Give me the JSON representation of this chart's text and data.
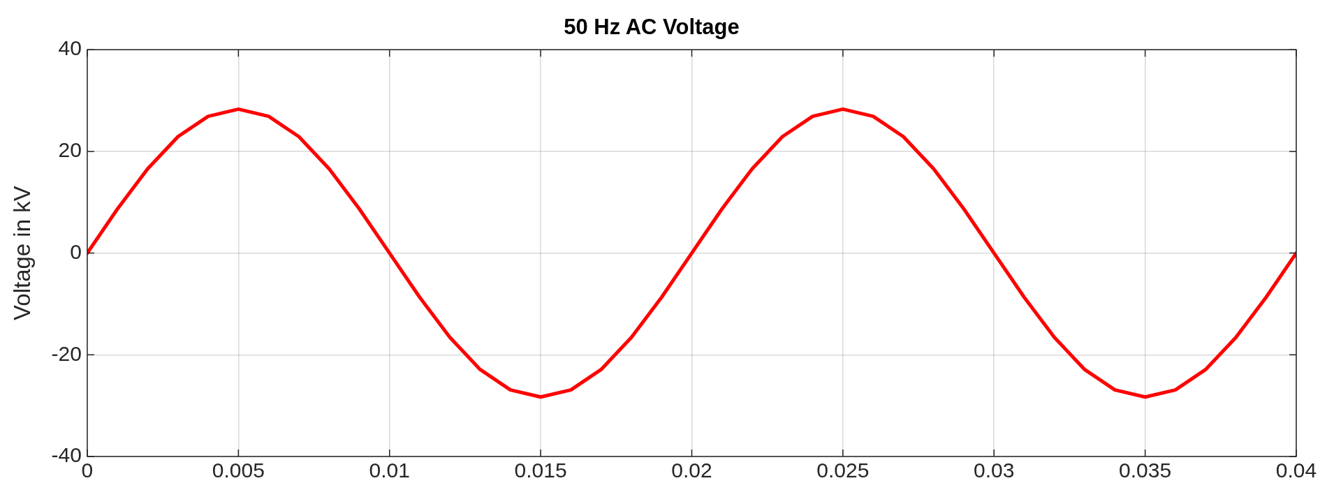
{
  "chart_data": {
    "type": "line",
    "title": "50 Hz AC Voltage",
    "ylabel": "Voltage in kV",
    "x": [
      0,
      0.001,
      0.002,
      0.003,
      0.004,
      0.005,
      0.006,
      0.007,
      0.008,
      0.009,
      0.01,
      0.011,
      0.012,
      0.013,
      0.014,
      0.015,
      0.016,
      0.017,
      0.018,
      0.019,
      0.02,
      0.021,
      0.022,
      0.023,
      0.024,
      0.025,
      0.026,
      0.027,
      0.028,
      0.029,
      0.03,
      0.031,
      0.032,
      0.033,
      0.034,
      0.035,
      0.036,
      0.037,
      0.038,
      0.039,
      0.04
    ],
    "series": [
      {
        "color": "#ff0000",
        "values": [
          0,
          8.7,
          16.6,
          22.9,
          26.9,
          28.3,
          26.9,
          22.9,
          16.6,
          8.7,
          0,
          -8.7,
          -16.6,
          -22.9,
          -26.9,
          -28.3,
          -26.9,
          -22.9,
          -16.6,
          -8.7,
          0,
          8.7,
          16.6,
          22.9,
          26.9,
          28.3,
          26.9,
          22.9,
          16.6,
          8.7,
          0,
          -8.7,
          -16.6,
          -22.9,
          -26.9,
          -28.3,
          -26.9,
          -22.9,
          -16.6,
          -8.7,
          0
        ]
      }
    ],
    "xlim": [
      0,
      0.04
    ],
    "xticks": [
      0,
      0.005,
      0.01,
      0.015,
      0.02,
      0.025,
      0.03,
      0.035,
      0.04
    ],
    "ylim": [
      -40,
      40
    ],
    "yticks": [
      -40,
      -20,
      0,
      20,
      40
    ],
    "grid": true,
    "legend": false,
    "marker": "none",
    "line_style": "solid"
  }
}
